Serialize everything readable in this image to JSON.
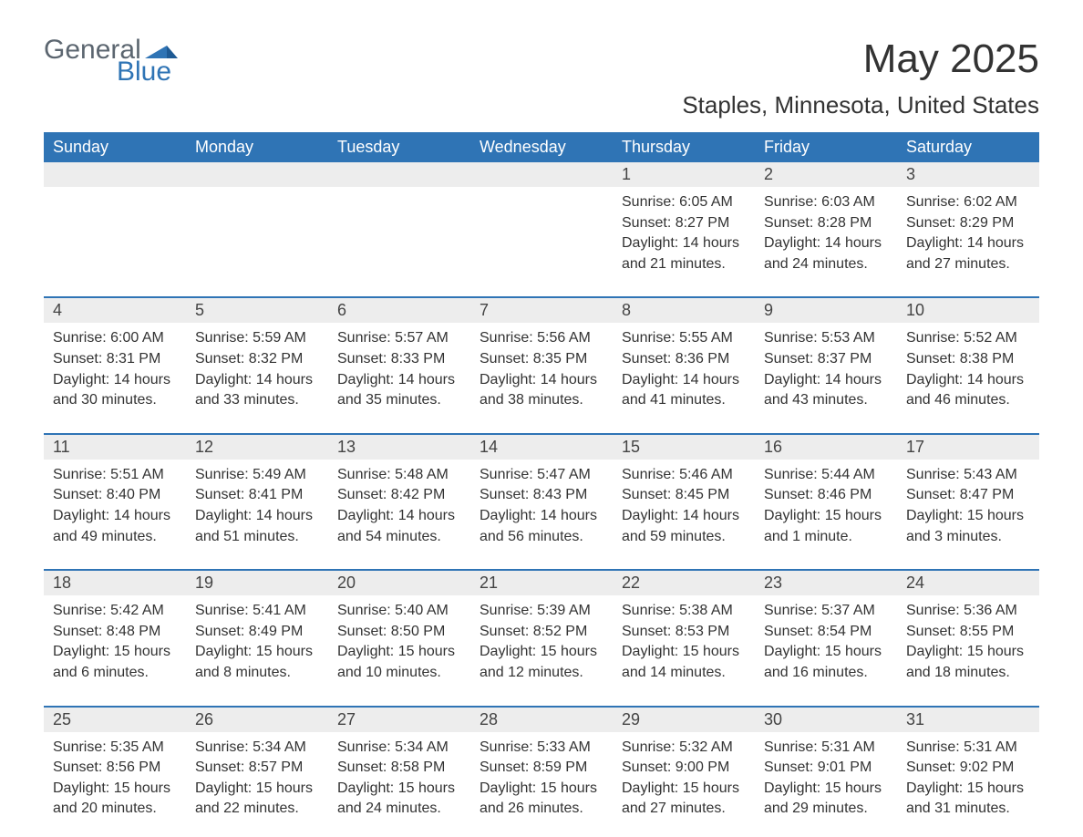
{
  "brand": {
    "part1": "General",
    "part2": "Blue"
  },
  "title": "May 2025",
  "location": "Staples, Minnesota, United States",
  "colors": {
    "header_bg": "#2f74b5",
    "accent": "#2f74b5",
    "daynum_bg": "#ededed",
    "text": "#333333",
    "logo_gray": "#5c6670"
  },
  "fonts": {
    "title_size": 44,
    "location_size": 26,
    "weekday_size": 18,
    "body_size": 16
  },
  "weekdays": [
    "Sunday",
    "Monday",
    "Tuesday",
    "Wednesday",
    "Thursday",
    "Friday",
    "Saturday"
  ],
  "weeks": [
    [
      null,
      null,
      null,
      null,
      {
        "n": "1",
        "sunrise": "Sunrise: 6:05 AM",
        "sunset": "Sunset: 8:27 PM",
        "d1": "Daylight: 14 hours",
        "d2": "and 21 minutes."
      },
      {
        "n": "2",
        "sunrise": "Sunrise: 6:03 AM",
        "sunset": "Sunset: 8:28 PM",
        "d1": "Daylight: 14 hours",
        "d2": "and 24 minutes."
      },
      {
        "n": "3",
        "sunrise": "Sunrise: 6:02 AM",
        "sunset": "Sunset: 8:29 PM",
        "d1": "Daylight: 14 hours",
        "d2": "and 27 minutes."
      }
    ],
    [
      {
        "n": "4",
        "sunrise": "Sunrise: 6:00 AM",
        "sunset": "Sunset: 8:31 PM",
        "d1": "Daylight: 14 hours",
        "d2": "and 30 minutes."
      },
      {
        "n": "5",
        "sunrise": "Sunrise: 5:59 AM",
        "sunset": "Sunset: 8:32 PM",
        "d1": "Daylight: 14 hours",
        "d2": "and 33 minutes."
      },
      {
        "n": "6",
        "sunrise": "Sunrise: 5:57 AM",
        "sunset": "Sunset: 8:33 PM",
        "d1": "Daylight: 14 hours",
        "d2": "and 35 minutes."
      },
      {
        "n": "7",
        "sunrise": "Sunrise: 5:56 AM",
        "sunset": "Sunset: 8:35 PM",
        "d1": "Daylight: 14 hours",
        "d2": "and 38 minutes."
      },
      {
        "n": "8",
        "sunrise": "Sunrise: 5:55 AM",
        "sunset": "Sunset: 8:36 PM",
        "d1": "Daylight: 14 hours",
        "d2": "and 41 minutes."
      },
      {
        "n": "9",
        "sunrise": "Sunrise: 5:53 AM",
        "sunset": "Sunset: 8:37 PM",
        "d1": "Daylight: 14 hours",
        "d2": "and 43 minutes."
      },
      {
        "n": "10",
        "sunrise": "Sunrise: 5:52 AM",
        "sunset": "Sunset: 8:38 PM",
        "d1": "Daylight: 14 hours",
        "d2": "and 46 minutes."
      }
    ],
    [
      {
        "n": "11",
        "sunrise": "Sunrise: 5:51 AM",
        "sunset": "Sunset: 8:40 PM",
        "d1": "Daylight: 14 hours",
        "d2": "and 49 minutes."
      },
      {
        "n": "12",
        "sunrise": "Sunrise: 5:49 AM",
        "sunset": "Sunset: 8:41 PM",
        "d1": "Daylight: 14 hours",
        "d2": "and 51 minutes."
      },
      {
        "n": "13",
        "sunrise": "Sunrise: 5:48 AM",
        "sunset": "Sunset: 8:42 PM",
        "d1": "Daylight: 14 hours",
        "d2": "and 54 minutes."
      },
      {
        "n": "14",
        "sunrise": "Sunrise: 5:47 AM",
        "sunset": "Sunset: 8:43 PM",
        "d1": "Daylight: 14 hours",
        "d2": "and 56 minutes."
      },
      {
        "n": "15",
        "sunrise": "Sunrise: 5:46 AM",
        "sunset": "Sunset: 8:45 PM",
        "d1": "Daylight: 14 hours",
        "d2": "and 59 minutes."
      },
      {
        "n": "16",
        "sunrise": "Sunrise: 5:44 AM",
        "sunset": "Sunset: 8:46 PM",
        "d1": "Daylight: 15 hours",
        "d2": "and 1 minute."
      },
      {
        "n": "17",
        "sunrise": "Sunrise: 5:43 AM",
        "sunset": "Sunset: 8:47 PM",
        "d1": "Daylight: 15 hours",
        "d2": "and 3 minutes."
      }
    ],
    [
      {
        "n": "18",
        "sunrise": "Sunrise: 5:42 AM",
        "sunset": "Sunset: 8:48 PM",
        "d1": "Daylight: 15 hours",
        "d2": "and 6 minutes."
      },
      {
        "n": "19",
        "sunrise": "Sunrise: 5:41 AM",
        "sunset": "Sunset: 8:49 PM",
        "d1": "Daylight: 15 hours",
        "d2": "and 8 minutes."
      },
      {
        "n": "20",
        "sunrise": "Sunrise: 5:40 AM",
        "sunset": "Sunset: 8:50 PM",
        "d1": "Daylight: 15 hours",
        "d2": "and 10 minutes."
      },
      {
        "n": "21",
        "sunrise": "Sunrise: 5:39 AM",
        "sunset": "Sunset: 8:52 PM",
        "d1": "Daylight: 15 hours",
        "d2": "and 12 minutes."
      },
      {
        "n": "22",
        "sunrise": "Sunrise: 5:38 AM",
        "sunset": "Sunset: 8:53 PM",
        "d1": "Daylight: 15 hours",
        "d2": "and 14 minutes."
      },
      {
        "n": "23",
        "sunrise": "Sunrise: 5:37 AM",
        "sunset": "Sunset: 8:54 PM",
        "d1": "Daylight: 15 hours",
        "d2": "and 16 minutes."
      },
      {
        "n": "24",
        "sunrise": "Sunrise: 5:36 AM",
        "sunset": "Sunset: 8:55 PM",
        "d1": "Daylight: 15 hours",
        "d2": "and 18 minutes."
      }
    ],
    [
      {
        "n": "25",
        "sunrise": "Sunrise: 5:35 AM",
        "sunset": "Sunset: 8:56 PM",
        "d1": "Daylight: 15 hours",
        "d2": "and 20 minutes."
      },
      {
        "n": "26",
        "sunrise": "Sunrise: 5:34 AM",
        "sunset": "Sunset: 8:57 PM",
        "d1": "Daylight: 15 hours",
        "d2": "and 22 minutes."
      },
      {
        "n": "27",
        "sunrise": "Sunrise: 5:34 AM",
        "sunset": "Sunset: 8:58 PM",
        "d1": "Daylight: 15 hours",
        "d2": "and 24 minutes."
      },
      {
        "n": "28",
        "sunrise": "Sunrise: 5:33 AM",
        "sunset": "Sunset: 8:59 PM",
        "d1": "Daylight: 15 hours",
        "d2": "and 26 minutes."
      },
      {
        "n": "29",
        "sunrise": "Sunrise: 5:32 AM",
        "sunset": "Sunset: 9:00 PM",
        "d1": "Daylight: 15 hours",
        "d2": "and 27 minutes."
      },
      {
        "n": "30",
        "sunrise": "Sunrise: 5:31 AM",
        "sunset": "Sunset: 9:01 PM",
        "d1": "Daylight: 15 hours",
        "d2": "and 29 minutes."
      },
      {
        "n": "31",
        "sunrise": "Sunrise: 5:31 AM",
        "sunset": "Sunset: 9:02 PM",
        "d1": "Daylight: 15 hours",
        "d2": "and 31 minutes."
      }
    ]
  ]
}
